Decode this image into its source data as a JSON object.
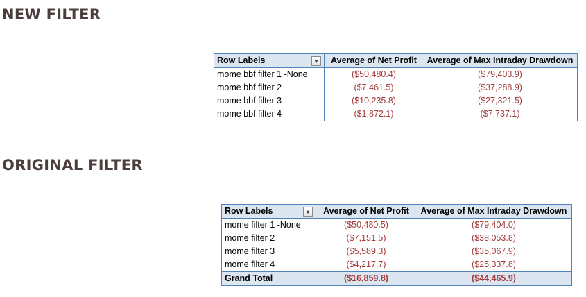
{
  "new_section": {
    "title": "NEW FILTER",
    "headers": {
      "row_labels": "Row Labels",
      "col1": "Average of Net Profit",
      "col2": "Average of Max Intraday Drawdown"
    },
    "rows": [
      {
        "label": "mome bbf filter 1 -None",
        "net_profit": "($50,480.4)",
        "max_dd": "($79,403.9)"
      },
      {
        "label": "mome bbf filter 2",
        "net_profit": "($7,461.5)",
        "max_dd": "($37,288.9)"
      },
      {
        "label": "mome bbf filter 3",
        "net_profit": "($10,235.8)",
        "max_dd": "($27,321.5)"
      },
      {
        "label": "mome bbf filter 4",
        "net_profit": "($1,872.1)",
        "max_dd": "($7,737.1)"
      }
    ]
  },
  "original_section": {
    "title": "ORIGINAL FILTER",
    "headers": {
      "row_labels": "Row Labels",
      "col1": "Average of Net Profit",
      "col2": "Average of Max Intraday Drawdown"
    },
    "rows": [
      {
        "label": "mome filter 1 -None",
        "net_profit": "($50,480.5)",
        "max_dd": "($79,404.0)"
      },
      {
        "label": "mome filter 2",
        "net_profit": "($7,151.5)",
        "max_dd": "($38,053.8)"
      },
      {
        "label": "mome filter 3",
        "net_profit": "($5,589.3)",
        "max_dd": "($35,067.9)"
      },
      {
        "label": "mome filter 4",
        "net_profit": "($4,217.7)",
        "max_dd": "($25,337.8)"
      }
    ],
    "grand_total": {
      "label": "Grand Total",
      "net_profit": "($16,859.8)",
      "max_dd": "($44,465.9)"
    }
  },
  "icons": {
    "filter_dropdown": "filter-dropdown-icon"
  },
  "colors": {
    "header_fill": "#dce6f1",
    "border": "#4f81bd",
    "negative_text": "#a33a3a",
    "title_text": "#4a3f3c"
  }
}
